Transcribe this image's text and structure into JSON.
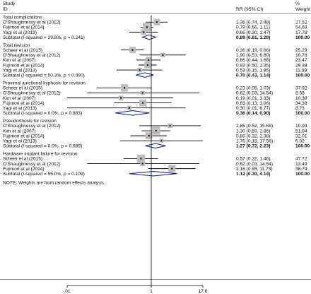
{
  "header": {
    "study_line1": "Study",
    "study_line2": "ID",
    "rr_label": "RR (95% CI)",
    "weight_line1": "%",
    "weight_line2": "Weight"
  },
  "note": "NOTE: Weights are from random effects analysis",
  "chart_data": {
    "type": "forest",
    "x_scale": "log",
    "x_ticks": [
      ".01",
      "1",
      "17.6"
    ],
    "null_line": 1,
    "xlim": [
      0.01,
      17.6
    ],
    "colors": {
      "line": "#000000",
      "box": "#bdbdbd",
      "diamond": "#1f2f8f",
      "divider": "#888888"
    },
    "groups": [
      {
        "name": "Total complications",
        "studies": [
          {
            "label": "O'Shaughnessy et al (2012)",
            "rr": 1.36,
            "lo": 0.74,
            "hi": 2.48,
            "ci": "1.36 (0.74, 2.48)",
            "weight": "27.52"
          },
          {
            "label": "Fujimori et al (2014)",
            "rr": 0.79,
            "lo": 0.56,
            "hi": 1.11,
            "ci": "0.79 (0.56, 1.11)",
            "weight": "54.69"
          },
          {
            "label": "Yagi et al (2013)",
            "rr": 0.66,
            "lo": 0.3,
            "hi": 1.47,
            "ci": "0.66 (0.30, 1.47)",
            "weight": "17.78"
          }
        ],
        "subtotal": {
          "label": "Subtotal  (I-squared = 29.8%, p = 0.241)",
          "rr": 0.89,
          "lo": 0.61,
          "hi": 1.29,
          "ci": "0.89 (0.61, 1.29)",
          "weight": "100.00"
        }
      },
      {
        "name": "Total revision",
        "studies": [
          {
            "label": "Scheer et al (2015)",
            "rr": 0.36,
            "lo": 0.19,
            "hi": 0.66,
            "ci": "0.36 (0.19, 0.66)",
            "weight": "25.29"
          },
          {
            "label": "O'Shaughnessy et al (2012)",
            "rr": 1.9,
            "lo": 0.53,
            "hi": 6.8,
            "ci": "1.90 (0.53, 6.80)",
            "weight": "10.78"
          },
          {
            "label": "Kim et al (2007)",
            "rr": 0.86,
            "lo": 0.44,
            "hi": 1.68,
            "ci": "0.86 (0.44, 1.68)",
            "weight": "23.47"
          },
          {
            "label": "Fujimori et al (2014)",
            "rr": 0.82,
            "lo": 0.5,
            "hi": 1.35,
            "ci": "0.82 (0.50, 1.35)",
            "weight": "29.38"
          },
          {
            "label": "Yagi et al (2013)",
            "rr": 0.53,
            "lo": 0.15,
            "hi": 1.85,
            "ci": "0.53 (0.15, 1.85)",
            "weight": "11.09"
          }
        ],
        "subtotal": {
          "label": "Subtotal  (I-squared = 50.3%, p = 0.090)",
          "rr": 0.7,
          "lo": 0.43,
          "hi": 1.14,
          "ci": "0.70 (0.43, 1.14)",
          "weight": "100.00"
        }
      },
      {
        "name": "Proximal junctional kyphosis for revision",
        "studies": [
          {
            "label": "Scheer et al (2015)",
            "rr": 0.23,
            "lo": 0.05,
            "hi": 1.03,
            "ci": "0.23 (0.05, 1.03)",
            "weight": "37.92"
          },
          {
            "label": "O'Shaughnessy et al (2012)",
            "rr": 0.62,
            "lo": 0.03,
            "hi": 14.54,
            "ci": "0.62 (0.03, 14.54)",
            "weight": "8.58"
          },
          {
            "label": "Kim et al (2007)",
            "rr": 0.19,
            "lo": 0.01,
            "hi": 3.33,
            "ci": "0.19 (0.01, 3.33)",
            "weight": "10.39"
          },
          {
            "label": "Fujimori et al (2014)",
            "rr": 0.63,
            "lo": 0.13,
            "hi": 3.06,
            "ci": "0.63 (0.13, 3.06)",
            "weight": "34.38"
          },
          {
            "label": "Yagi et al (2013)",
            "rr": 0.3,
            "lo": 0.01,
            "hi": 6.77,
            "ci": "0.30 (0.01, 6.77)",
            "weight": "8.73"
          }
        ],
        "subtotal": {
          "label": "Subtotal  (I-squared = 0.0%, p = 0.883)",
          "rr": 0.36,
          "lo": 0.14,
          "hi": 0.9,
          "ci": "0.36 (0.14, 0.90)",
          "weight": "100.00"
        }
      },
      {
        "name": "Pseudorthosis for revision",
        "studies": [
          {
            "label": "O'Shaughnessy et al (2012)",
            "rr": 2.85,
            "lo": 0.52,
            "hi": 15.68,
            "ci": "2.85 (0.52, 15.68)",
            "weight": "10.93"
          },
          {
            "label": "Kim et al (2007)",
            "rr": 1.3,
            "lo": 0.59,
            "hi": 2.86,
            "ci": "1.30 (0.59, 2.86)",
            "weight": "51.04"
          },
          {
            "label": "Fujimori et al (2014)",
            "rr": 0.88,
            "lo": 0.32,
            "hi": 2.38,
            "ci": "0.88 (0.32, 2.38)",
            "weight": "32.01"
          },
          {
            "label": "Yagi et al (2013)",
            "rr": 1.76,
            "lo": 0.18,
            "hi": 17.56,
            "ci": "1.76 (0.18, 17.56)",
            "weight": "6.02"
          }
        ],
        "subtotal": {
          "label": "Subtotal  (I-squared = 0.0%, p = 0.689)",
          "rr": 1.27,
          "lo": 0.72,
          "hi": 2.23,
          "ci": "1.27 (0.72, 2.23)",
          "weight": "100.00"
        }
      },
      {
        "name": "Hardware implant failure for revision",
        "studies": [
          {
            "label": "Scheer et al (2015)",
            "rr": 0.57,
            "lo": 0.22,
            "hi": 1.46,
            "ci": "0.57 (0.22, 1.46)",
            "weight": "47.72"
          },
          {
            "label": "O'Shaughnessy et al (2012)",
            "rr": 0.62,
            "lo": 0.03,
            "hi": 14.54,
            "ci": "0.62 (0.03, 14.54)",
            "weight": "13.49"
          },
          {
            "label": "Fujimori et al (2014)",
            "rr": 3.16,
            "lo": 0.85,
            "hi": 11.73,
            "ci": "3.16 (0.85, 11.73)",
            "weight": "38.79"
          }
        ],
        "subtotal": {
          "label": "Subtotal  (I-squared = 55.0%, p = 0.109)",
          "rr": 1.12,
          "lo": 0.3,
          "hi": 4.14,
          "ci": "1.12 (0.30, 4.14)",
          "weight": "100.00"
        }
      }
    ]
  }
}
